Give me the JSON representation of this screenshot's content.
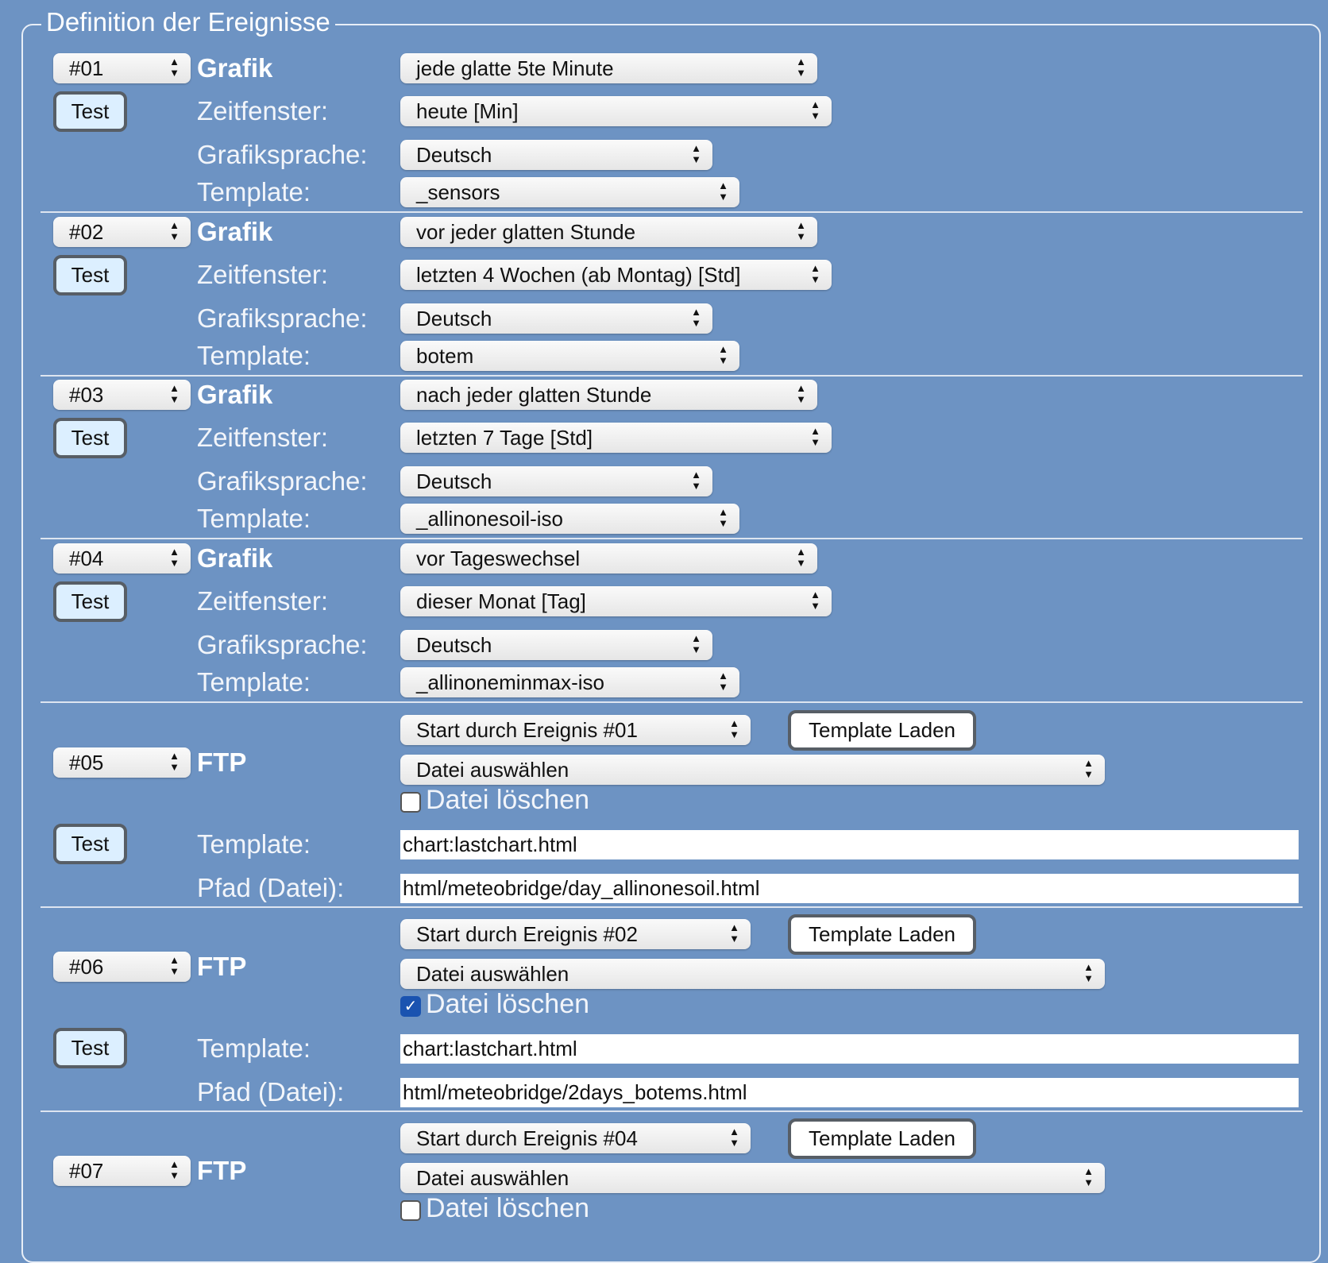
{
  "legend": "Definition der Ereignisse",
  "test_label": "Test",
  "graph_events": [
    {
      "number": "#01",
      "type": "Grafik",
      "trigger": "jede glatte 5te Minute",
      "zeitfenster_label": "Zeitfenster:",
      "zeitfenster": "heute [Min]",
      "sprache_label": "Grafiksprache:",
      "sprache": "Deutsch",
      "template_label": "Template:",
      "template": "_sensors"
    },
    {
      "number": "#02",
      "type": "Grafik",
      "trigger": "vor jeder glatten Stunde",
      "zeitfenster_label": "Zeitfenster:",
      "zeitfenster": "letzten 4 Wochen (ab Montag) [Std]",
      "sprache_label": "Grafiksprache:",
      "sprache": "Deutsch",
      "template_label": "Template:",
      "template": "botem"
    },
    {
      "number": "#03",
      "type": "Grafik",
      "trigger": "nach jeder glatten Stunde",
      "zeitfenster_label": "Zeitfenster:",
      "zeitfenster": "letzten 7 Tage [Std]",
      "sprache_label": "Grafiksprache:",
      "sprache": "Deutsch",
      "template_label": "Template:",
      "template": "_allinonesoil-iso"
    },
    {
      "number": "#04",
      "type": "Grafik",
      "trigger": "vor Tageswechsel",
      "zeitfenster_label": "Zeitfenster:",
      "zeitfenster": "dieser Monat [Tag]",
      "sprache_label": "Grafiksprache:",
      "sprache": "Deutsch",
      "template_label": "Template:",
      "template": "_allinoneminmax-iso"
    }
  ],
  "ftp_events": [
    {
      "number": "#05",
      "type": "FTP",
      "start": "Start durch Ereignis #01",
      "template_load": "Template Laden",
      "file_select": "Datei auswählen",
      "delete_label": "Datei löschen",
      "delete_checked": false,
      "template_label": "Template:",
      "template": "chart:lastchart.html",
      "path_label": "Pfad (Datei):",
      "path": "html/meteobridge/day_allinonesoil.html"
    },
    {
      "number": "#06",
      "type": "FTP",
      "start": "Start durch Ereignis #02",
      "template_load": "Template Laden",
      "file_select": "Datei auswählen",
      "delete_label": "Datei löschen",
      "delete_checked": true,
      "template_label": "Template:",
      "template": "chart:lastchart.html",
      "path_label": "Pfad (Datei):",
      "path": "html/meteobridge/2days_botems.html"
    },
    {
      "number": "#07",
      "type": "FTP",
      "start": "Start durch Ereignis #04",
      "template_load": "Template Laden",
      "file_select": "Datei auswählen",
      "delete_label": "Datei löschen",
      "delete_checked": false
    }
  ],
  "colors": {
    "background": "#6d93c3",
    "test_button": "#dcefff",
    "checkbox_checked": "#1a53b0"
  }
}
